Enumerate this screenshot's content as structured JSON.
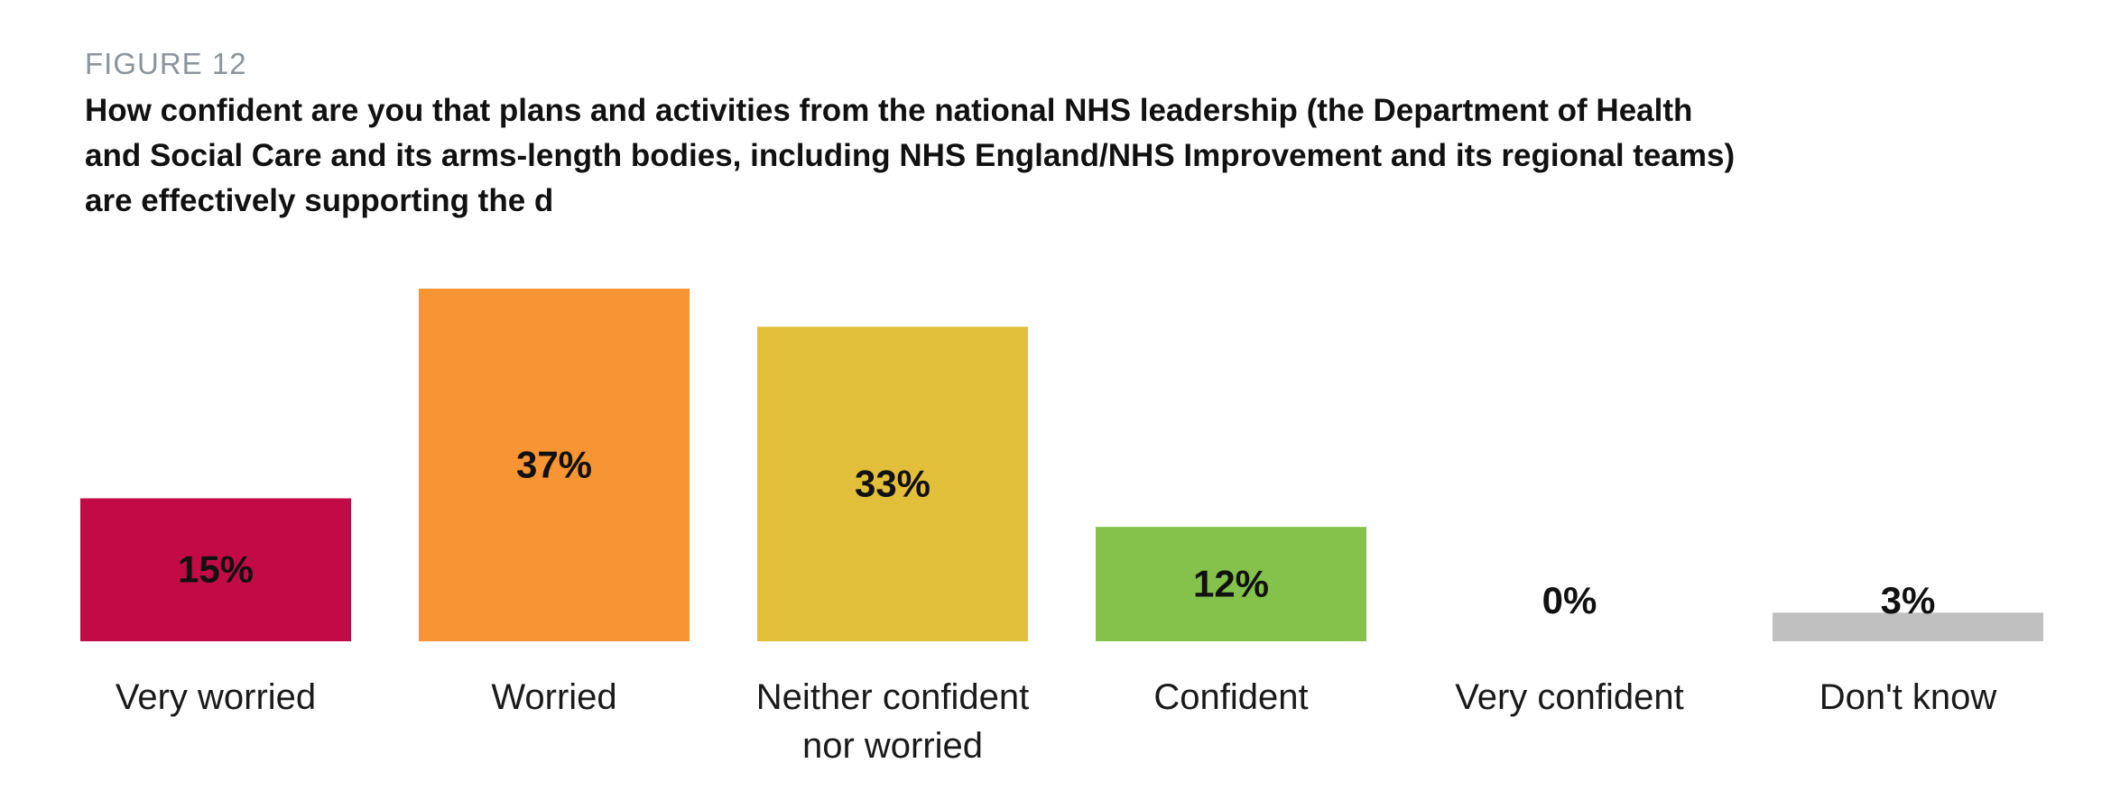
{
  "figure_label": "FIGURE 12",
  "title": "How confident are you that plans and activities from the national NHS leadership (the Department of Health and Social Care and its arms-length bodies, including NHS England/NHS Improvement and its regional teams) are effectively supporting the d",
  "chart_data": {
    "type": "bar",
    "title": "How confident are you that plans and activities from the national NHS leadership (the Department of Health and Social Care and its arms-length bodies, including NHS England/NHS Improvement and its regional teams) are effectively supporting the d",
    "categories": [
      [
        "Very worried"
      ],
      [
        "Worried"
      ],
      [
        "Neither confident",
        "nor worried"
      ],
      [
        "Confident"
      ],
      [
        "Very confident"
      ],
      [
        "Don't know"
      ]
    ],
    "values": [
      15,
      37,
      33,
      12,
      0,
      3
    ],
    "value_labels": [
      "15%",
      "37%",
      "33%",
      "12%",
      "0%",
      "3%"
    ],
    "colors": [
      "#c20a47",
      "#f79433",
      "#e1bf3a",
      "#84c24b",
      "#ffffff",
      "#c0c0c0"
    ],
    "xlabel": "",
    "ylabel": "",
    "ylim": [
      0,
      37
    ],
    "grid": false,
    "legend": "none"
  }
}
